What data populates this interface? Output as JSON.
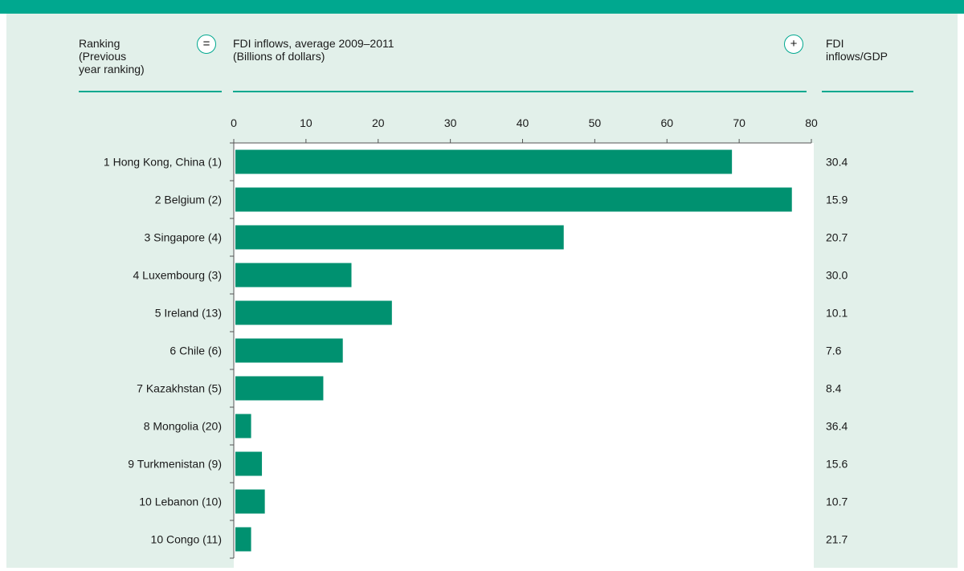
{
  "header": {
    "ranking_label": "Ranking\n(Previous\nyear ranking)",
    "equal_symbol": "=",
    "main_label": "FDI inflows, average 2009–2011\n(Billions of dollars)",
    "plus_symbol": "+",
    "right_label": "FDI\ninflows/GDP"
  },
  "colors": {
    "accent": "#00a88f",
    "bar": "#009170",
    "panel_bg": "#e2f0ea"
  },
  "chart_data": {
    "type": "bar",
    "orientation": "horizontal",
    "title": "FDI inflows, average 2009–2011",
    "xlabel": "(Billions of dollars)",
    "xlim": [
      0,
      80
    ],
    "x_ticks": [
      "0",
      "10",
      "20",
      "30",
      "40",
      "50",
      "60",
      "70",
      "80"
    ],
    "categories": [
      "1 Hong Kong, China (1)",
      "2 Belgium (2)",
      "3 Singapore (4)",
      "4 Luxembourg (3)",
      "5 Ireland (13)",
      "6 Chile (6)",
      "7 Kazakhstan (5)",
      "8 Mongolia (20)",
      "9 Turkmenistan (9)",
      "10 Lebanon (10)",
      "10 Congo (11)"
    ],
    "values": [
      69.0,
      77.3,
      45.7,
      16.3,
      21.9,
      15.1,
      12.4,
      2.4,
      3.9,
      4.3,
      2.4
    ],
    "secondary_label": "FDI inflows/GDP",
    "secondary_values": [
      "30.4",
      "15.9",
      "20.7",
      "30.0",
      "10.1",
      "7.6",
      "8.4",
      "36.4",
      "15.6",
      "10.7",
      "21.7"
    ],
    "grid": false
  }
}
